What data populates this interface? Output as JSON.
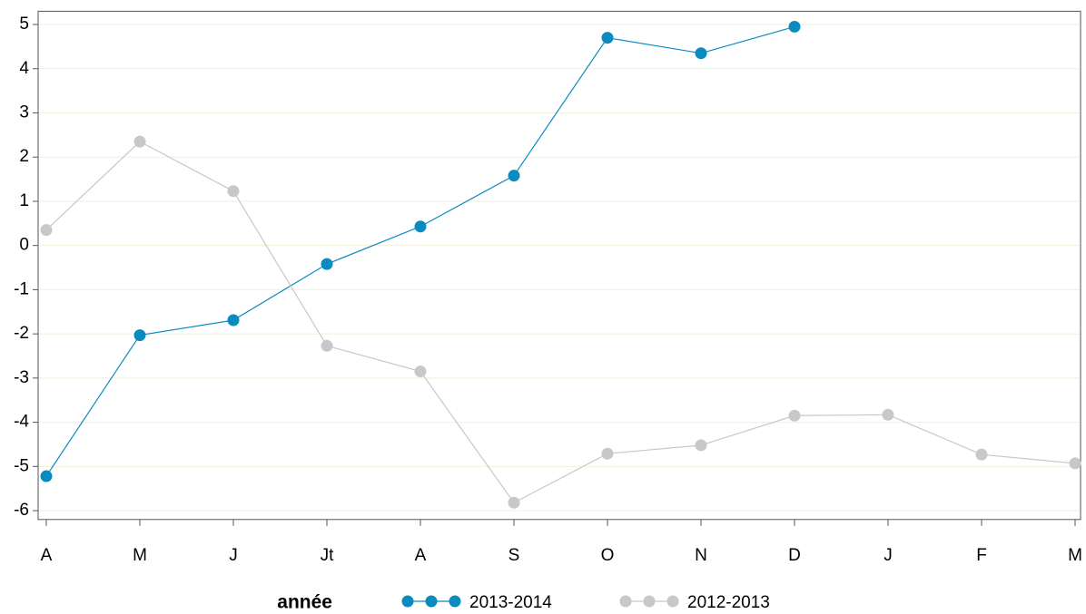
{
  "chart_data": {
    "type": "line",
    "categories": [
      "A",
      "M",
      "J",
      "Jt",
      "A",
      "S",
      "O",
      "N",
      "D",
      "J",
      "F",
      "M"
    ],
    "series": [
      {
        "name": "2013-2014",
        "color": "#0a8bc0",
        "values": [
          -5.22,
          -2.03,
          -1.69,
          -0.42,
          0.43,
          1.58,
          4.7,
          4.35,
          4.95,
          null,
          null,
          null
        ]
      },
      {
        "name": "2012-2013",
        "color": "#c8c8c8",
        "values": [
          0.35,
          2.35,
          1.23,
          -2.27,
          -2.85,
          -5.82,
          -4.71,
          -4.52,
          -3.85,
          -3.83,
          -4.73,
          -4.93
        ]
      }
    ],
    "ylim": [
      -6.2,
      5.3
    ],
    "yticks": [
      -6,
      -5,
      -4,
      -3,
      -2,
      -1,
      0,
      1,
      2,
      3,
      4,
      5
    ],
    "grid": true,
    "legend_title": "année",
    "legend": "bottom"
  }
}
